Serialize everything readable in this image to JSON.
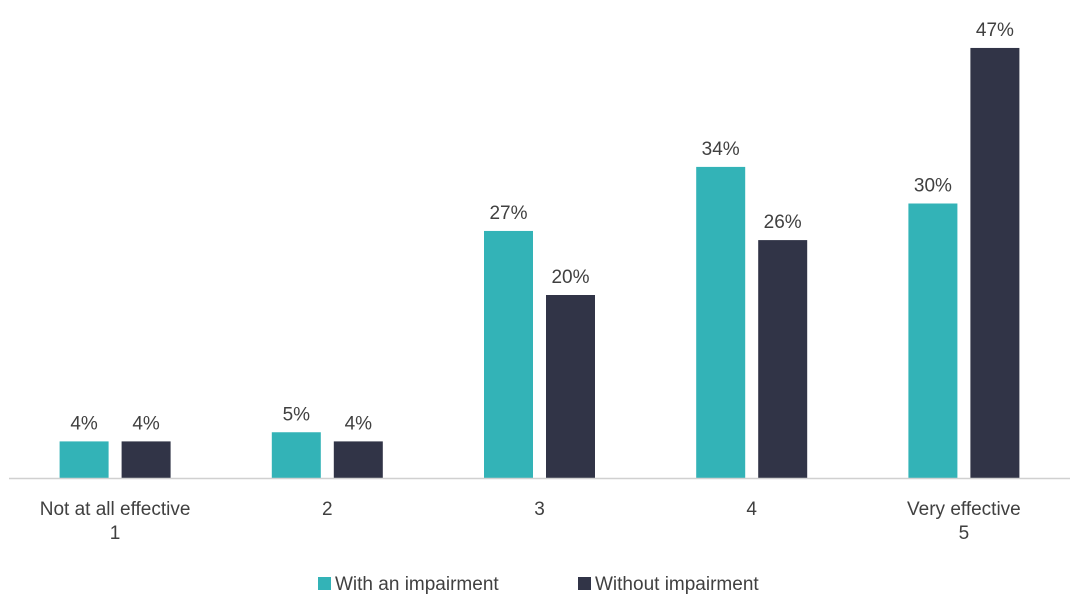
{
  "chart_data": {
    "type": "bar",
    "title": "",
    "xlabel": "",
    "ylabel": "",
    "categories": [
      [
        "Not at all effective",
        "1"
      ],
      [
        "2"
      ],
      [
        "3"
      ],
      [
        "4"
      ],
      [
        "Very effective",
        "5"
      ]
    ],
    "series": [
      {
        "name": "With an impairment",
        "values": [
          4,
          5,
          27,
          34,
          30
        ],
        "labels": [
          "4%",
          "5%",
          "27%",
          "34%",
          "30%"
        ],
        "color": "#33b3b7"
      },
      {
        "name": "Without impairment",
        "values": [
          4,
          4,
          20,
          26,
          47
        ],
        "labels": [
          "4%",
          "4%",
          "20%",
          "26%",
          "47%"
        ],
        "color": "#313447"
      }
    ],
    "ylim": [
      0,
      50
    ],
    "grid": false,
    "legend_position": "bottom"
  }
}
